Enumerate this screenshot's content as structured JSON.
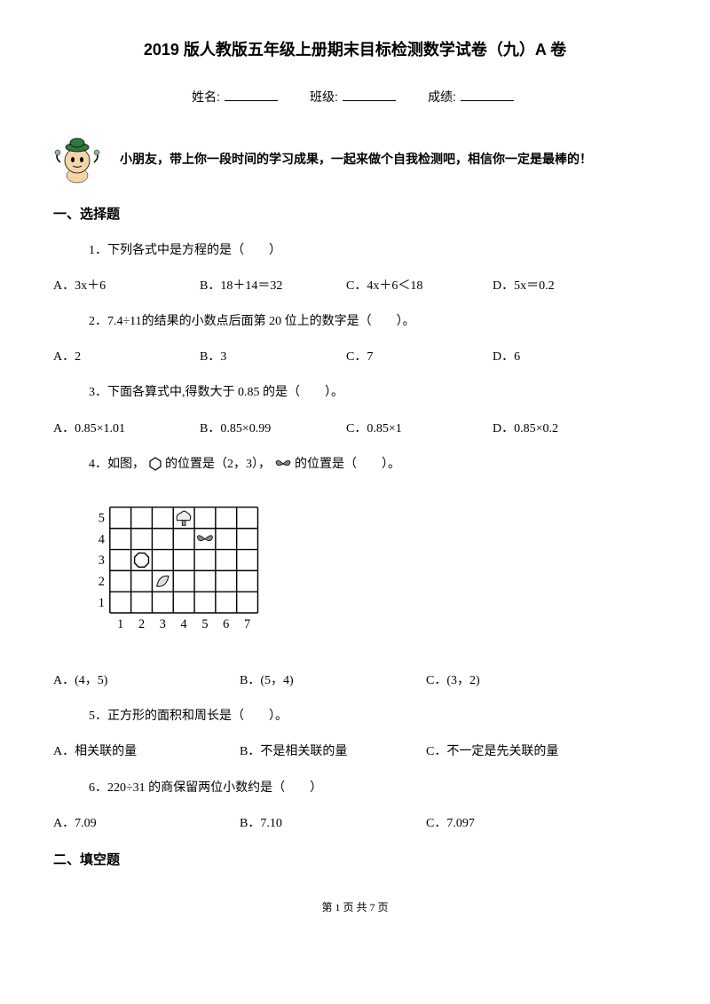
{
  "title": "2019 版人教版五年级上册期末目标检测数学试卷（九）A 卷",
  "info": {
    "name_label": "姓名:",
    "class_label": "班级:",
    "score_label": "成绩:"
  },
  "intro": "小朋友，带上你一段时间的学习成果，一起来做个自我检测吧，相信你一定是最棒的！",
  "section1": "一、选择题",
  "q1": {
    "text": "1．下列各式中是方程的是（　　）",
    "a": "A．3x＋6",
    "b": "B．18＋14＝32",
    "c": "C．4x＋6＜18",
    "d": "D．5x＝0.2"
  },
  "q2": {
    "prefix": "2．",
    "expr": "7.4÷11",
    "suffix": "的结果的小数点后面第 20 位上的数字是（　　）。",
    "a": "A．2",
    "b": "B．3",
    "c": "C．7",
    "d": "D．6"
  },
  "q3": {
    "text": "3．下面各算式中,得数大于 0.85 的是（　　）。",
    "a": "A．0.85×1.01",
    "b": "B．0.85×0.99",
    "c": "C．0.85×1",
    "d": "D．0.85×0.2"
  },
  "q4": {
    "prefix": "4．如图，",
    "mid": " 的位置是（2，3），",
    "suffix": " 的位置是（　　）。",
    "a": "A．(4，5)",
    "b": "B．(5，4)",
    "c": "C．(3，2)"
  },
  "q5": {
    "text": "5．正方形的面积和周长是（　　）。",
    "a": "A．相关联的量",
    "b": "B．不是相关联的量",
    "c": "C．不一定是先关联的量"
  },
  "q6": {
    "text": "6．220÷31 的商保留两位小数约是（　　）",
    "a": "A．7.09",
    "b": "B．7.10",
    "c": "C．7.097"
  },
  "section2": "二、填空题",
  "footer": "第 1 页 共 7 页",
  "grid": {
    "rows": 5,
    "cols": 7,
    "row_labels": [
      "1",
      "2",
      "3",
      "4",
      "5"
    ],
    "col_labels": [
      "1",
      "2",
      "3",
      "4",
      "5",
      "6",
      "7"
    ],
    "cell_size": 25,
    "stroke": "#000000"
  },
  "mascot_colors": {
    "hat": "#2d7a3d",
    "skin": "#f5d5a8",
    "shirt": "#ffffff"
  }
}
